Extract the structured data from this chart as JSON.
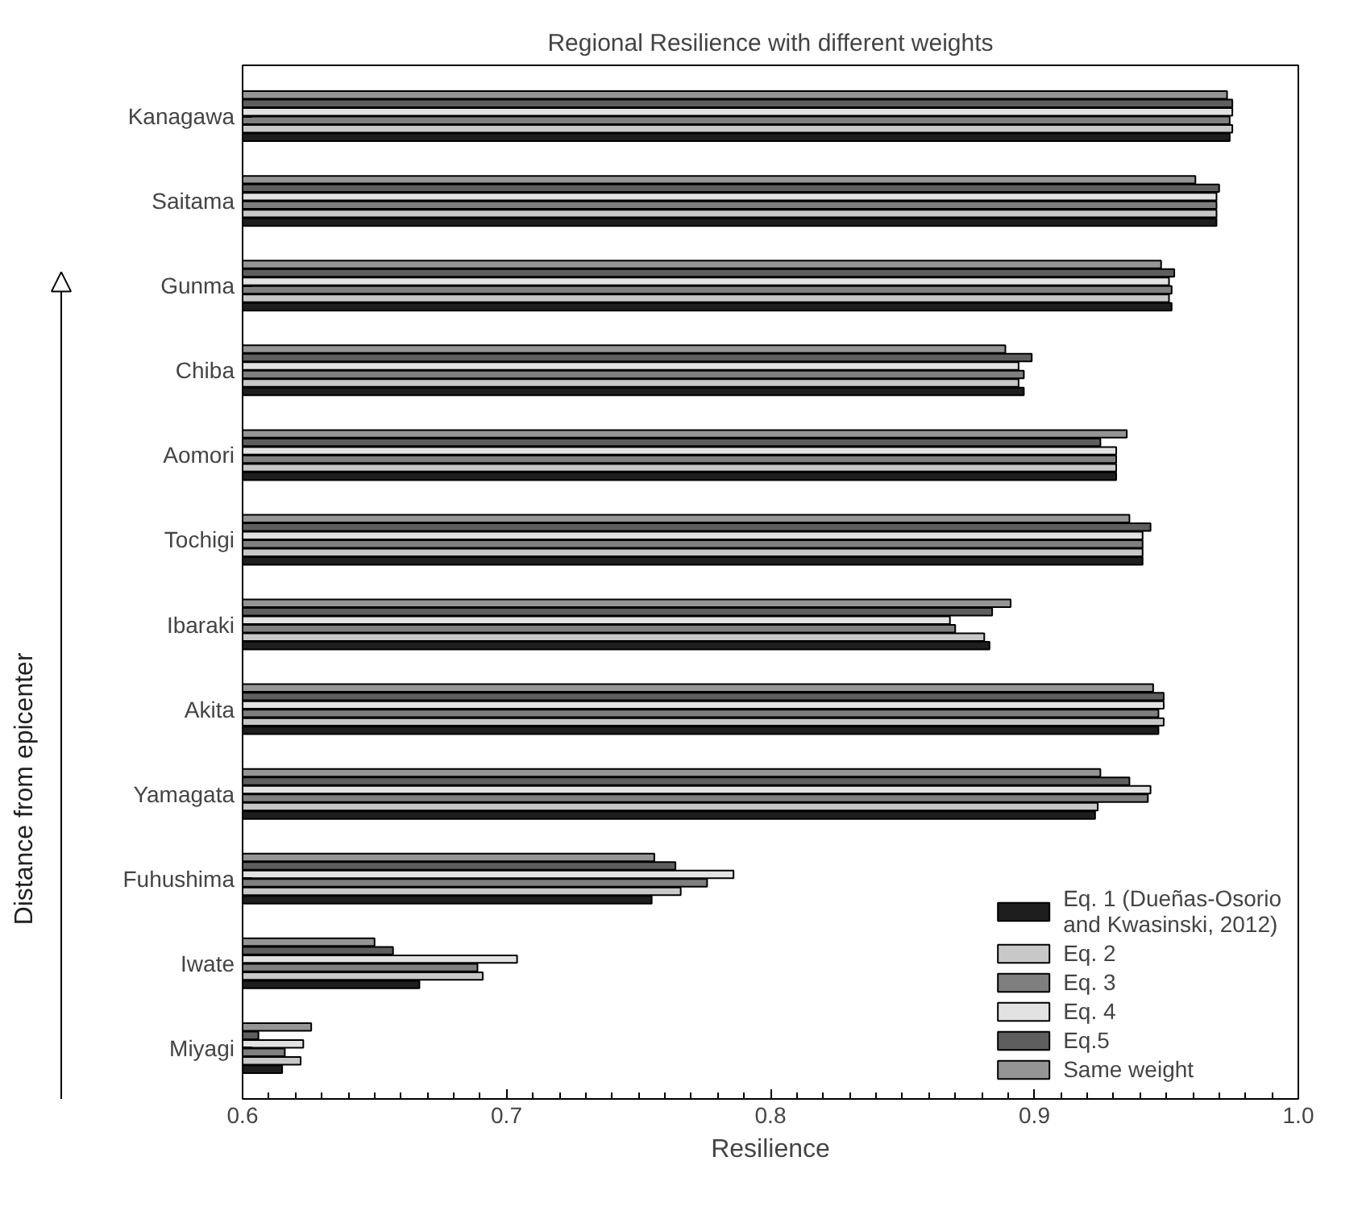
{
  "chart_data": {
    "type": "bar",
    "orientation": "horizontal",
    "title": "Regional Resilience with different weights",
    "xlabel": "Resilience",
    "ylabel": "Distance from epicenter",
    "categories": [
      "Kanagawa",
      "Saitama",
      "Gunma",
      "Chiba",
      "Aomori",
      "Tochigi",
      "Ibaraki",
      "Akita",
      "Yamagata",
      "Fuhushima",
      "Iwate",
      "Miyagi"
    ],
    "series": [
      {
        "name": "Eq. 1 (Dueñas-Osorio and Kwasinski, 2012)",
        "color": "#1e1e1e",
        "values": [
          0.974,
          0.969,
          0.952,
          0.896,
          0.931,
          0.941,
          0.883,
          0.947,
          0.923,
          0.755,
          0.667,
          0.615
        ]
      },
      {
        "name": "Eq. 2",
        "color": "#c8c8c8",
        "values": [
          0.975,
          0.969,
          0.951,
          0.894,
          0.931,
          0.941,
          0.881,
          0.949,
          0.924,
          0.766,
          0.691,
          0.622
        ]
      },
      {
        "name": "Eq. 3",
        "color": "#7f7f7f",
        "values": [
          0.974,
          0.969,
          0.952,
          0.896,
          0.931,
          0.941,
          0.87,
          0.947,
          0.943,
          0.776,
          0.689,
          0.616
        ]
      },
      {
        "name": "Eq. 4",
        "color": "#e2e2e2",
        "values": [
          0.975,
          0.969,
          0.951,
          0.894,
          0.931,
          0.941,
          0.868,
          0.949,
          0.944,
          0.786,
          0.704,
          0.623
        ]
      },
      {
        "name": "Eq.5",
        "color": "#5e5e5e",
        "values": [
          0.975,
          0.97,
          0.953,
          0.899,
          0.925,
          0.944,
          0.884,
          0.949,
          0.936,
          0.764,
          0.657,
          0.606
        ]
      },
      {
        "name": "Same weight",
        "color": "#959595",
        "values": [
          0.973,
          0.961,
          0.948,
          0.889,
          0.935,
          0.936,
          0.891,
          0.945,
          0.925,
          0.756,
          0.65,
          0.626
        ]
      }
    ],
    "xlim": [
      0.6,
      1.0
    ],
    "xticks": [
      0.6,
      0.7,
      0.8,
      0.9,
      {
        "value": 1.0,
        "label": "1.0"
      }
    ],
    "grid": false,
    "legend": "bottom right"
  }
}
